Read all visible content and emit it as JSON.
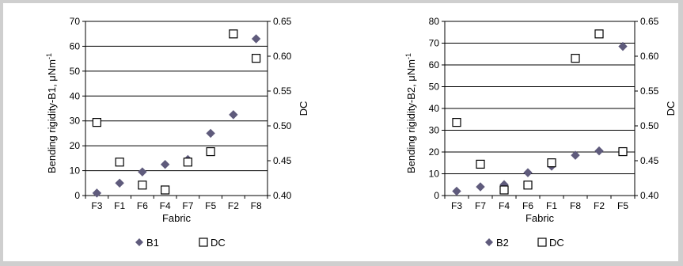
{
  "chart_data": [
    {
      "type": "scatter",
      "xlabel": "Fabric",
      "ylabel": "Bending rigidity-B1, μNm",
      "ylabel_sup": "-1",
      "y2label": "DC",
      "categories": [
        "F3",
        "F1",
        "F6",
        "F4",
        "F7",
        "F5",
        "F2",
        "F8"
      ],
      "ylim": [
        0,
        70
      ],
      "yticks": [
        "0",
        "10",
        "20",
        "30",
        "40",
        "50",
        "60",
        "70"
      ],
      "y2lim": [
        0.4,
        0.65
      ],
      "y2ticks": [
        "0.40",
        "0.45",
        "0.50",
        "0.55",
        "0.60",
        "0.65"
      ],
      "grid": true,
      "legend_position": "bottom",
      "series": [
        {
          "name": "B1",
          "marker": "diamond",
          "color": "#5f5b7c",
          "axis": "left",
          "values": [
            1,
            5,
            9.5,
            12.5,
            14.5,
            25,
            32.5,
            63
          ]
        },
        {
          "name": "DC",
          "marker": "square",
          "color": "#000000",
          "axis": "right",
          "values": [
            0.505,
            0.448,
            0.415,
            0.408,
            0.448,
            0.463,
            0.632,
            0.597
          ]
        }
      ]
    },
    {
      "type": "scatter",
      "xlabel": "Fabric",
      "ylabel": "Bending rigidity-B2, μNm",
      "ylabel_sup": "-1",
      "y2label": "DC",
      "categories": [
        "F3",
        "F7",
        "F4",
        "F6",
        "F1",
        "F8",
        "F2",
        "F5"
      ],
      "ylim": [
        0,
        80
      ],
      "yticks": [
        "0",
        "10",
        "20",
        "30",
        "40",
        "50",
        "60",
        "70",
        "80"
      ],
      "y2lim": [
        0.4,
        0.65
      ],
      "y2ticks": [
        "0.40",
        "0.45",
        "0.50",
        "0.55",
        "0.60",
        "0.65"
      ],
      "grid": true,
      "legend_position": "bottom",
      "series": [
        {
          "name": "B2",
          "marker": "diamond",
          "color": "#5f5b7c",
          "axis": "left",
          "values": [
            2,
            4,
            5,
            10.5,
            13.5,
            18.5,
            20.5,
            68.5
          ]
        },
        {
          "name": "DC",
          "marker": "square",
          "color": "#000000",
          "axis": "right",
          "values": [
            0.505,
            0.445,
            0.408,
            0.415,
            0.447,
            0.597,
            0.632,
            0.463
          ]
        }
      ]
    }
  ]
}
